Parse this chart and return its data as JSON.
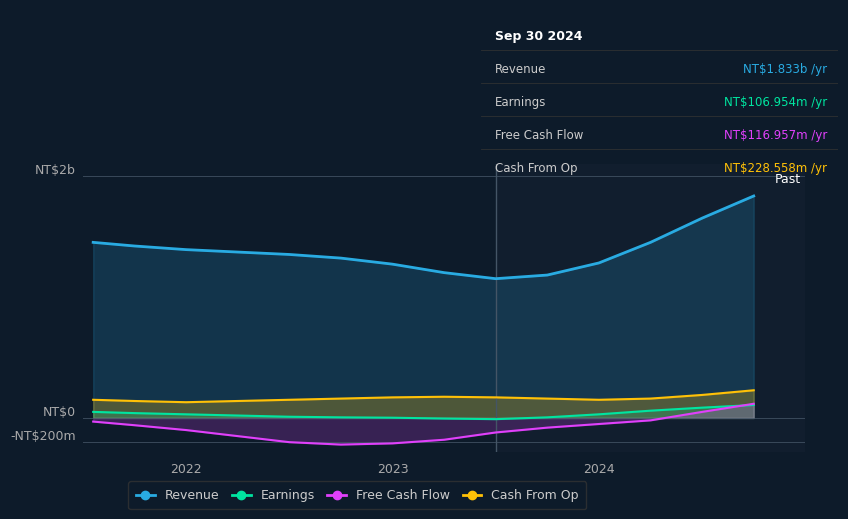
{
  "bg_color": "#0d1b2a",
  "plot_bg_color": "#0d1b2a",
  "ylabel_top": "NT$2b",
  "ylabel_zero": "NT$0",
  "ylabel_neg": "-NT$200m",
  "x_ticks": [
    2022.0,
    2023.0,
    2024.0
  ],
  "xlim": [
    2021.5,
    2025.0
  ],
  "ylim": [
    -280000000,
    2100000000
  ],
  "divider_x": 2023.5,
  "past_label": "Past",
  "revenue": {
    "x": [
      2021.55,
      2021.75,
      2022.0,
      2022.25,
      2022.5,
      2022.75,
      2023.0,
      2023.25,
      2023.5,
      2023.75,
      2024.0,
      2024.25,
      2024.5,
      2024.75
    ],
    "y": [
      1450000000,
      1420000000,
      1390000000,
      1370000000,
      1350000000,
      1320000000,
      1270000000,
      1200000000,
      1150000000,
      1180000000,
      1280000000,
      1450000000,
      1650000000,
      1833000000
    ],
    "color": "#29abe2",
    "label": "Revenue",
    "lw": 2.0
  },
  "earnings": {
    "x": [
      2021.55,
      2021.75,
      2022.0,
      2022.25,
      2022.5,
      2022.75,
      2023.0,
      2023.25,
      2023.5,
      2023.75,
      2024.0,
      2024.25,
      2024.5,
      2024.75
    ],
    "y": [
      50000000,
      40000000,
      30000000,
      20000000,
      10000000,
      5000000,
      2000000,
      -5000000,
      -10000000,
      5000000,
      30000000,
      60000000,
      85000000,
      106954000
    ],
    "color": "#00e5a0",
    "label": "Earnings",
    "lw": 1.5
  },
  "free_cash_flow": {
    "x": [
      2021.55,
      2021.75,
      2022.0,
      2022.25,
      2022.5,
      2022.75,
      2023.0,
      2023.25,
      2023.5,
      2023.75,
      2024.0,
      2024.25,
      2024.5,
      2024.75
    ],
    "y": [
      -30000000,
      -60000000,
      -100000000,
      -150000000,
      -200000000,
      -220000000,
      -210000000,
      -180000000,
      -120000000,
      -80000000,
      -50000000,
      -20000000,
      50000000,
      116957000
    ],
    "color": "#e040fb",
    "label": "Free Cash Flow",
    "lw": 1.5
  },
  "cash_from_op": {
    "x": [
      2021.55,
      2021.75,
      2022.0,
      2022.25,
      2022.5,
      2022.75,
      2023.0,
      2023.25,
      2023.5,
      2023.75,
      2024.0,
      2024.25,
      2024.5,
      2024.75
    ],
    "y": [
      150000000,
      140000000,
      130000000,
      140000000,
      150000000,
      160000000,
      170000000,
      175000000,
      170000000,
      160000000,
      150000000,
      160000000,
      190000000,
      228558000
    ],
    "color": "#ffc107",
    "label": "Cash From Op",
    "lw": 1.5
  },
  "tooltip": {
    "date": "Sep 30 2024",
    "revenue_val": "NT$1.833b",
    "earnings_val": "NT$106.954m",
    "fcf_val": "NT$116.957m",
    "cfop_val": "NT$228.558m",
    "revenue_color": "#29abe2",
    "earnings_color": "#00e5a0",
    "fcf_color": "#e040fb",
    "cfop_color": "#ffc107",
    "bg_color": "#0a0a0a",
    "text_color": "#cccccc"
  },
  "legend_items": [
    {
      "label": "Revenue",
      "color": "#29abe2"
    },
    {
      "label": "Earnings",
      "color": "#00e5a0"
    },
    {
      "label": "Free Cash Flow",
      "color": "#e040fb"
    },
    {
      "label": "Cash From Op",
      "color": "#ffc107"
    }
  ]
}
